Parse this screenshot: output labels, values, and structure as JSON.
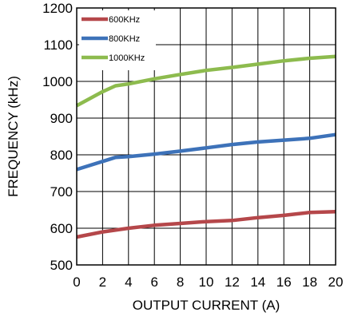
{
  "chart_data": {
    "type": "line",
    "xlabel": "OUTPUT CURRENT (A)",
    "ylabel": "FREQUENCY (kHz)",
    "xlim": [
      0,
      20
    ],
    "ylim": [
      500,
      1200
    ],
    "xticks": [
      "0",
      "2",
      "4",
      "6",
      "8",
      "10",
      "12",
      "14",
      "16",
      "18",
      "20"
    ],
    "yticks": [
      "500",
      "600",
      "700",
      "800",
      "900",
      "1000",
      "1100",
      "1200"
    ],
    "grid": true,
    "legend_position": "top-left",
    "series": [
      {
        "name": "600KHz",
        "color": "#b5474a",
        "x": [
          0,
          2,
          4,
          6,
          8,
          10,
          12,
          14,
          16,
          18,
          20
        ],
        "values": [
          576,
          590,
          600,
          608,
          613,
          618,
          621,
          629,
          635,
          643,
          645
        ]
      },
      {
        "name": "800KHz",
        "color": "#3d72b9",
        "x": [
          0,
          2,
          3,
          4,
          6,
          8,
          10,
          12,
          14,
          16,
          18,
          20
        ],
        "values": [
          760,
          782,
          793,
          795,
          802,
          810,
          819,
          828,
          835,
          840,
          845,
          855
        ]
      },
      {
        "name": "1000KHz",
        "color": "#8dbb4e",
        "x": [
          0,
          2,
          3,
          4,
          6,
          8,
          10,
          12,
          14,
          16,
          18,
          20
        ],
        "values": [
          934,
          972,
          988,
          993,
          1007,
          1019,
          1030,
          1038,
          1047,
          1056,
          1063,
          1068
        ]
      }
    ]
  }
}
